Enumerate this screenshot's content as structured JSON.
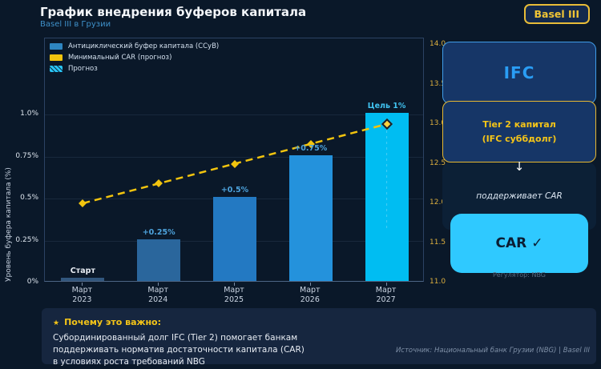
{
  "header": {
    "title": "График внедрения буферов капитала",
    "subtitle": "Basel III в Грузии",
    "badge": "Basel III"
  },
  "chart_data": {
    "type": "bar",
    "title": "График внедрения буферов капитала",
    "categories": [
      "Март 2023",
      "Март 2024",
      "Март 2025",
      "Март 2026",
      "Март 2027"
    ],
    "series": [
      {
        "name": "Антициклический буфер капитала (CCyB)",
        "type": "bar",
        "axis": "left",
        "values": [
          0.02,
          0.25,
          0.5,
          0.75,
          1.0
        ]
      },
      {
        "name": "Минимальный CAR (прогноз)",
        "type": "line",
        "style": "dashed",
        "axis": "right",
        "values": [
          12.0,
          12.25,
          12.5,
          12.75,
          13.0
        ]
      }
    ],
    "bar_annotations": [
      "Старт",
      "+0.25%",
      "+0.5%",
      "+0.75%",
      "Цель 1%"
    ],
    "forecast_bar_index": 4,
    "ylabel": "Уровень буфера капитала (%)",
    "axes": {
      "left": {
        "labels": [
          "0%",
          "0.25%",
          "0.5%",
          "0.75%",
          "1.0%"
        ],
        "values": [
          0,
          0.25,
          0.5,
          0.75,
          1.0
        ],
        "range": [
          0,
          1.45
        ]
      },
      "right": {
        "labels": [
          "11.0",
          "11.5",
          "12.0",
          "12.5",
          "13.0",
          "13.5",
          "14.0"
        ],
        "values": [
          11,
          11.5,
          12,
          12.5,
          13,
          13.5,
          14
        ],
        "range": [
          11,
          14
        ]
      }
    },
    "legend": [
      {
        "label": "Антициклический буфер капитала (CCyB)",
        "color": "#2e86c1",
        "hatch": false
      },
      {
        "label": "Минимальный CAR (прогноз)",
        "color": "#f2c40e",
        "hatch": false
      },
      {
        "label": "Прогноз",
        "color": "#29c5f6",
        "hatch": true
      }
    ],
    "colors": {
      "bars": [
        "#31567d",
        "#2a669c",
        "#2379c2",
        "#2492dc",
        "#00bdf2"
      ],
      "line": "#f2c40e",
      "bar_annotations": [
        "#e9eef5",
        "#4da3dd",
        "#4da3dd",
        "#4da3dd",
        "#41c4f2"
      ]
    },
    "grid": true,
    "legend_position": "upper-left"
  },
  "flowchart": {
    "ifc": "IFC",
    "tier2": "Tier 2 капитал\n(IFC суббдолг)",
    "arrow": "↓",
    "supports": "поддерживает CAR",
    "car": "CAR ✓",
    "regulator": "Регулятор: NBG"
  },
  "footer": {
    "why_star": "★",
    "why_title": "Почему это важно:",
    "why_body": "Субординированный долг IFC (Tier 2) помогает банкам\nподдерживать норматив достаточности капитала (CAR)\nв условиях роста требований NBG",
    "source": "Источник: Национальный банк Грузии (NBG) | Basel III"
  }
}
